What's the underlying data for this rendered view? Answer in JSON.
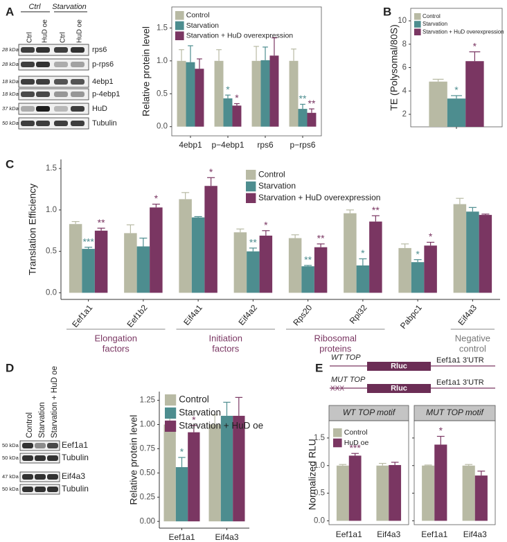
{
  "panel_labels": [
    "A",
    "B",
    "C",
    "D",
    "E"
  ],
  "blot_a": {
    "conditions": [
      "Ctrl",
      "Starvation"
    ],
    "lanes": [
      "Ctrl",
      "HuD oe",
      "Ctrl",
      "HuD oe"
    ],
    "rows": [
      {
        "size": "28 kDa",
        "protein": "rps6"
      },
      {
        "size": "28 kDa",
        "protein": "p-rps6"
      },
      {
        "size": "18 kDa",
        "protein": "4ebp1"
      },
      {
        "size": "18 kDa",
        "protein": "p-4ebp1"
      },
      {
        "size": "37 kDa",
        "protein": "HuD"
      },
      {
        "size": "50 kDa",
        "protein": "Tubulin"
      }
    ]
  },
  "blot_d": {
    "lanes": [
      "Control",
      "Starvation",
      "Starvation + HuD oe"
    ],
    "rows": [
      {
        "size": "50 kDa",
        "protein": "Eef1a1"
      },
      {
        "size": "50 kDa",
        "protein": "Tubulin"
      },
      {
        "size": "47 kDa",
        "protein": "Eif4a3"
      },
      {
        "size": "50 kDa",
        "protein": "Tubulin"
      }
    ]
  },
  "construct_e": {
    "rows": [
      {
        "name": "WT TOP",
        "gene": "Rluc",
        "utr": "Eef1a1 3'UTR"
      },
      {
        "name": "MUT TOP",
        "mutation": "XXX",
        "gene": "Rluc",
        "utr": "Eef1a1 3'UTR"
      }
    ]
  },
  "chart_data": [
    {
      "type": "bar",
      "y_label": "Relative protein level",
      "categories": [
        "4ebp1",
        "p−4ebp1",
        "rps6",
        "p−rps6"
      ],
      "series": [
        {
          "name": "Control",
          "color": "#b8baa4",
          "values": [
            1,
            1,
            1,
            1
          ],
          "errors": [
            0.17,
            0.17,
            0.22,
            0.18
          ]
        },
        {
          "name": "Starvation",
          "color": "#4d8d8f",
          "values": [
            0.98,
            0.43,
            1.01,
            0.27
          ],
          "errors": [
            0.25,
            0.05,
            0.2,
            0.07
          ],
          "significance": [
            null,
            "*",
            null,
            "**"
          ]
        },
        {
          "name": "Starvation + HuD overexpression",
          "color": "#7a3662",
          "values": [
            0.88,
            0.32,
            1.08,
            0.21
          ],
          "errors": [
            0.15,
            0.03,
            0.27,
            0.06
          ],
          "significance": [
            null,
            "*",
            null,
            "**"
          ]
        }
      ],
      "ylim": [
        -0.14,
        1.82
      ],
      "yticks": [
        {
          "value": 0,
          "label": "0.0"
        },
        0.5,
        {
          "value": 1,
          "label": "1.0"
        },
        1.5
      ],
      "legend": "top-left"
    },
    {
      "type": "bar",
      "y_label": "TE (Polysomal/80S)",
      "categories": [
        null
      ],
      "series": [
        {
          "name": "Control",
          "color": "#b8baa4",
          "values": [
            4.8
          ],
          "errors": [
            0.2
          ]
        },
        {
          "name": "Starvation",
          "color": "#4d8d8f",
          "values": [
            3.35
          ],
          "errors": [
            0.25
          ],
          "significance": [
            "*"
          ]
        },
        {
          "name": "Starvation + HuD overexpression",
          "color": "#7a3662",
          "values": [
            6.55
          ],
          "errors": [
            0.8
          ],
          "significance": [
            "*"
          ]
        }
      ],
      "ylim": [
        0.93,
        11.07
      ],
      "yticks": [
        2,
        4,
        6,
        8,
        10
      ],
      "legend": "top-left"
    },
    {
      "type": "bar",
      "y_label": "Translation Efficiency",
      "categories": [
        "Eef1a1",
        "Eef1b2",
        "Eif4a1",
        "Eif4a2",
        "Rps20",
        "Rpl32",
        "Pabpc1",
        "Eif4a3"
      ],
      "series": [
        {
          "name": "Control",
          "color": "#b8baa4",
          "values": [
            0.83,
            0.72,
            1.13,
            0.73,
            0.66,
            0.96,
            0.54,
            1.07
          ],
          "errors": [
            0.03,
            0.1,
            0.08,
            0.04,
            0.04,
            0.04,
            0.05,
            0.07
          ]
        },
        {
          "name": "Starvation",
          "color": "#4d8d8f",
          "values": [
            0.53,
            0.56,
            0.91,
            0.5,
            0.32,
            0.33,
            0.37,
            0.98
          ],
          "errors": [
            0.02,
            0.1,
            0.01,
            0.04,
            0.01,
            0.08,
            0.03,
            0.05
          ],
          "significance": [
            "***",
            null,
            null,
            "**",
            "**",
            "*",
            "*",
            null
          ]
        },
        {
          "name": "Starvation + HuD overexpression",
          "color": "#7a3662",
          "values": [
            0.75,
            1.03,
            1.29,
            0.69,
            0.55,
            0.86,
            0.57,
            0.94
          ],
          "errors": [
            0.03,
            0.04,
            0.1,
            0.06,
            0.04,
            0.07,
            0.04,
            0.01
          ],
          "significance": [
            "**",
            "*",
            "*",
            "*",
            "**",
            "**",
            "*",
            null
          ]
        }
      ],
      "ylim": [
        -0.08,
        1.61
      ],
      "yticks": [
        {
          "value": 0,
          "label": "0.0"
        },
        0.5,
        {
          "value": 1,
          "label": "1.0"
        },
        1.5
      ],
      "legend": "top-center",
      "groups": [
        {
          "lines": [
            "Elongation",
            "factors"
          ]
        },
        {
          "lines": [
            "Initiation",
            "factors"
          ]
        },
        {
          "lines": [
            "Ribosomal",
            "proteins"
          ]
        },
        {
          "lines": [
            "Negative",
            "control"
          ]
        }
      ]
    },
    {
      "type": "bar",
      "y_label": "Relative protein level",
      "categories": [
        "Eef1a1",
        "Eif4a3"
      ],
      "series": [
        {
          "name": "Control",
          "color": "#b8baa4",
          "values": [
            1,
            1
          ],
          "errors": [
            0.08,
            0.1
          ]
        },
        {
          "name": "Starvation",
          "color": "#4d8d8f",
          "values": [
            0.56,
            1.09
          ],
          "errors": [
            0.1,
            0.14
          ],
          "significance": [
            "*",
            null
          ]
        },
        {
          "name": "Starvation + HuD oe",
          "color": "#7a3662",
          "values": [
            0.92,
            1.09
          ],
          "errors": [
            0.07,
            0.19
          ],
          "significance": [
            "*",
            null
          ]
        }
      ],
      "ylim": [
        -0.07,
        1.34
      ],
      "yticks": [
        {
          "value": 0,
          "label": "0.00"
        },
        0.25,
        {
          "value": 0.5,
          "label": "0.50"
        },
        0.75,
        {
          "value": 1,
          "label": "1.00"
        },
        1.25
      ],
      "legend": "top-left"
    },
    {
      "type": "bar",
      "y_label": "Normalized RLU",
      "categories": [
        "Eef1a1",
        "Eif4a3"
      ],
      "series": [
        {
          "name": "Control",
          "color": "#b8baa4"
        },
        {
          "name": "HuD oe",
          "color": "#7a3662"
        }
      ],
      "facets": [
        {
          "title": "WT TOP motif",
          "values": [
            [
              1,
              1
            ],
            [
              1.18,
              1.01
            ]
          ],
          "errors": [
            [
              0.02,
              0.04
            ],
            [
              0.04,
              0.05
            ]
          ],
          "significance": [
            [
              null,
              null
            ],
            [
              "***",
              null
            ]
          ]
        },
        {
          "title": "MUT TOP motif",
          "values": [
            [
              1,
              1
            ],
            [
              1.38,
              0.82
            ]
          ],
          "errors": [
            [
              0.01,
              0.02
            ],
            [
              0.15,
              0.08
            ]
          ],
          "significance": [
            [
              null,
              null
            ],
            [
              "*",
              null
            ]
          ]
        }
      ],
      "ylim": [
        -0.07,
        1.75
      ],
      "yticks": [
        {
          "value": 0,
          "label": "0.0"
        },
        0.5,
        {
          "value": 1,
          "label": "1.0"
        },
        1.5
      ],
      "legend": "top-left"
    }
  ]
}
